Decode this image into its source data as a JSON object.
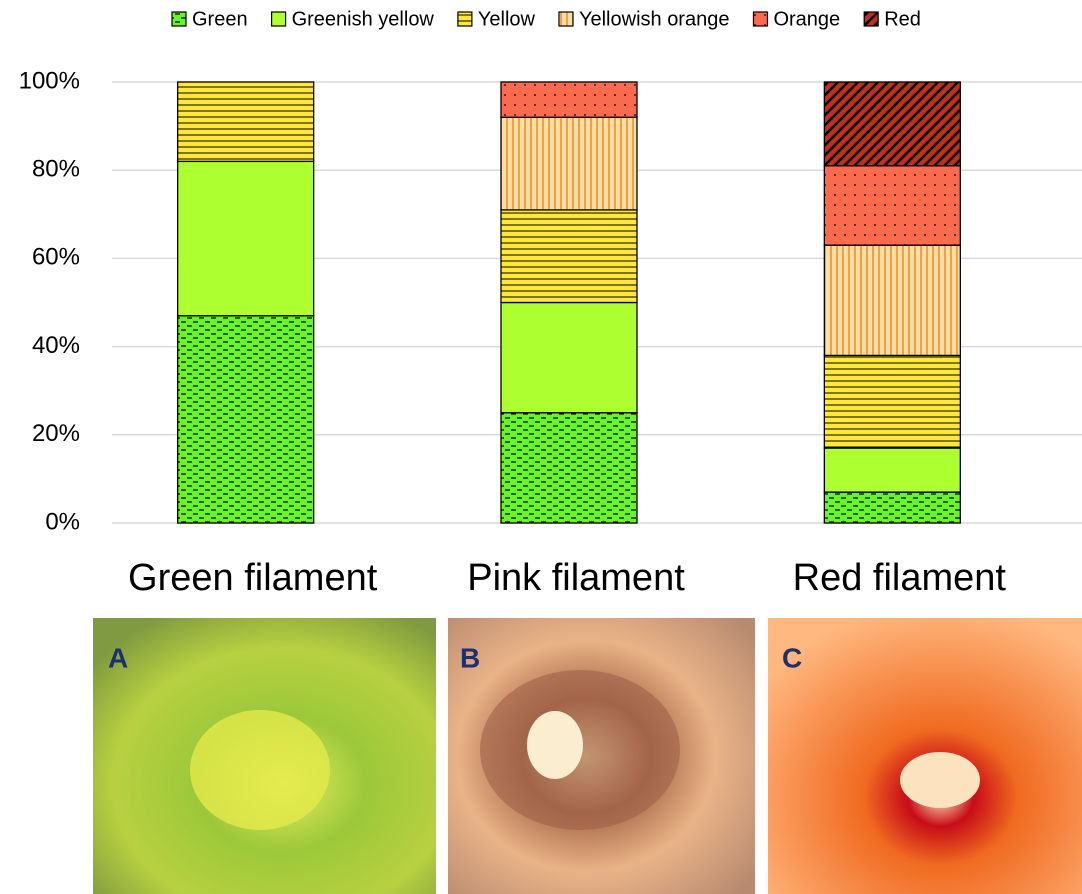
{
  "chart_data": {
    "type": "stacked_bar",
    "categories": [
      "Green filament",
      "Pink filament",
      "Red filament"
    ],
    "series": [
      {
        "name": "Green",
        "color": "#6cf22a",
        "hatch": "dash",
        "values": [
          47,
          25,
          7
        ]
      },
      {
        "name": "Greenish yellow",
        "color": "#adff2f",
        "hatch": "none",
        "values": [
          35,
          25,
          10
        ]
      },
      {
        "name": "Yellow",
        "color": "#ffe83a",
        "hatch": "horizontal",
        "values": [
          18,
          21,
          21
        ]
      },
      {
        "name": "Yellowish orange",
        "color": "#ffdca8",
        "hatch": "vertical",
        "values": [
          0,
          21,
          25
        ]
      },
      {
        "name": "Orange",
        "color": "#f96a4f",
        "hatch": "dots",
        "values": [
          0,
          8,
          18
        ]
      },
      {
        "name": "Red",
        "color": "#c0301a",
        "hatch": "diagonal",
        "values": [
          0,
          0,
          19
        ]
      }
    ],
    "ylim": [
      0,
      100
    ],
    "yticks": [
      {
        "value": 0,
        "label": "0%"
      },
      {
        "value": 20,
        "label": "20%"
      },
      {
        "value": 40,
        "label": "40%"
      },
      {
        "value": 60,
        "label": "60%"
      },
      {
        "value": 80,
        "label": "80%"
      },
      {
        "value": 100,
        "label": "100%"
      }
    ],
    "grid": true,
    "legend": "top",
    "panel_labels": [
      "A",
      "B",
      "C"
    ]
  }
}
